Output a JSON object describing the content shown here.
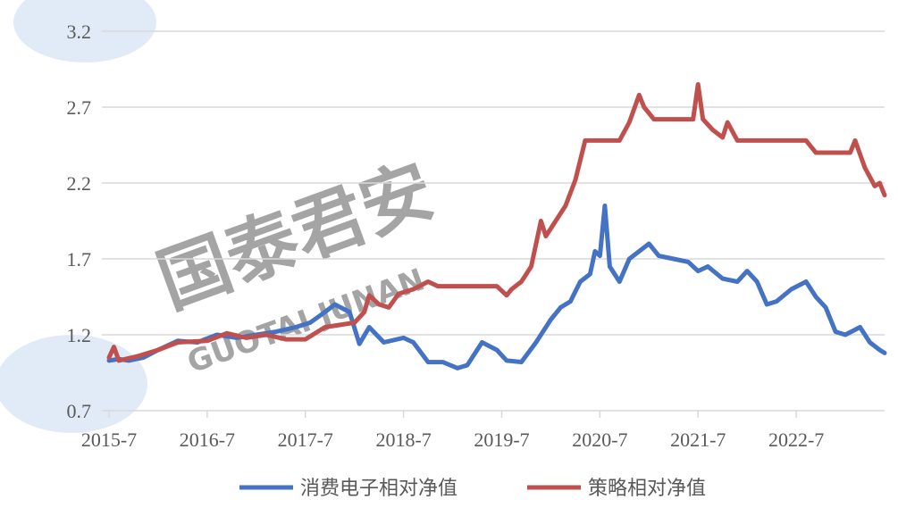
{
  "watermark": {
    "name": "国泰君安",
    "latin": "GUOTAI JUNAN"
  },
  "chart_data": {
    "type": "line",
    "title": "",
    "xlabel": "",
    "ylabel": "",
    "x_ticks": [
      "2015-7",
      "2016-7",
      "2017-7",
      "2018-7",
      "2019-7",
      "2020-7",
      "2021-7",
      "2022-7"
    ],
    "y_ticks": [
      "0.7",
      "1.2",
      "1.7",
      "2.2",
      "2.7",
      "3.2"
    ],
    "xlim": [
      2015.5,
      2023.4
    ],
    "ylim": [
      0.7,
      3.2
    ],
    "grid": true,
    "legend_position": "bottom",
    "series": [
      {
        "name": "消费电子相对净值",
        "color": "#4472c4",
        "points": [
          [
            2015.5,
            1.03
          ],
          [
            2015.6,
            1.04
          ],
          [
            2015.7,
            1.03
          ],
          [
            2015.85,
            1.05
          ],
          [
            2016.0,
            1.1
          ],
          [
            2016.2,
            1.16
          ],
          [
            2016.4,
            1.15
          ],
          [
            2016.6,
            1.2
          ],
          [
            2016.8,
            1.18
          ],
          [
            2017.0,
            1.2
          ],
          [
            2017.2,
            1.22
          ],
          [
            2017.4,
            1.25
          ],
          [
            2017.55,
            1.28
          ],
          [
            2017.7,
            1.35
          ],
          [
            2017.8,
            1.4
          ],
          [
            2017.95,
            1.35
          ],
          [
            2018.05,
            1.14
          ],
          [
            2018.15,
            1.25
          ],
          [
            2018.3,
            1.15
          ],
          [
            2018.5,
            1.18
          ],
          [
            2018.6,
            1.15
          ],
          [
            2018.75,
            1.02
          ],
          [
            2018.9,
            1.02
          ],
          [
            2019.05,
            0.98
          ],
          [
            2019.15,
            1.0
          ],
          [
            2019.3,
            1.15
          ],
          [
            2019.45,
            1.1
          ],
          [
            2019.55,
            1.03
          ],
          [
            2019.7,
            1.02
          ],
          [
            2019.85,
            1.15
          ],
          [
            2020.0,
            1.3
          ],
          [
            2020.1,
            1.38
          ],
          [
            2020.2,
            1.42
          ],
          [
            2020.3,
            1.55
          ],
          [
            2020.4,
            1.6
          ],
          [
            2020.45,
            1.75
          ],
          [
            2020.5,
            1.72
          ],
          [
            2020.55,
            2.05
          ],
          [
            2020.6,
            1.65
          ],
          [
            2020.7,
            1.55
          ],
          [
            2020.8,
            1.7
          ],
          [
            2020.9,
            1.75
          ],
          [
            2021.0,
            1.8
          ],
          [
            2021.1,
            1.72
          ],
          [
            2021.25,
            1.7
          ],
          [
            2021.4,
            1.68
          ],
          [
            2021.5,
            1.62
          ],
          [
            2021.6,
            1.65
          ],
          [
            2021.75,
            1.57
          ],
          [
            2021.9,
            1.55
          ],
          [
            2022.0,
            1.62
          ],
          [
            2022.1,
            1.55
          ],
          [
            2022.2,
            1.4
          ],
          [
            2022.3,
            1.42
          ],
          [
            2022.45,
            1.5
          ],
          [
            2022.6,
            1.55
          ],
          [
            2022.7,
            1.45
          ],
          [
            2022.8,
            1.38
          ],
          [
            2022.9,
            1.22
          ],
          [
            2023.0,
            1.2
          ],
          [
            2023.15,
            1.25
          ],
          [
            2023.25,
            1.15
          ],
          [
            2023.35,
            1.1
          ],
          [
            2023.4,
            1.08
          ]
        ]
      },
      {
        "name": "策略相对净值",
        "color": "#c0504d",
        "points": [
          [
            2015.5,
            1.05
          ],
          [
            2015.55,
            1.12
          ],
          [
            2015.6,
            1.03
          ],
          [
            2015.8,
            1.06
          ],
          [
            2016.0,
            1.1
          ],
          [
            2016.2,
            1.15
          ],
          [
            2016.5,
            1.16
          ],
          [
            2016.7,
            1.21
          ],
          [
            2016.9,
            1.18
          ],
          [
            2017.1,
            1.2
          ],
          [
            2017.3,
            1.17
          ],
          [
            2017.5,
            1.17
          ],
          [
            2017.7,
            1.25
          ],
          [
            2017.9,
            1.27
          ],
          [
            2018.0,
            1.28
          ],
          [
            2018.1,
            1.35
          ],
          [
            2018.15,
            1.46
          ],
          [
            2018.25,
            1.4
          ],
          [
            2018.35,
            1.38
          ],
          [
            2018.45,
            1.47
          ],
          [
            2018.6,
            1.5
          ],
          [
            2018.75,
            1.55
          ],
          [
            2018.85,
            1.52
          ],
          [
            2019.2,
            1.52
          ],
          [
            2019.45,
            1.52
          ],
          [
            2019.55,
            1.46
          ],
          [
            2019.6,
            1.5
          ],
          [
            2019.7,
            1.55
          ],
          [
            2019.8,
            1.65
          ],
          [
            2019.9,
            1.95
          ],
          [
            2019.95,
            1.85
          ],
          [
            2020.05,
            1.95
          ],
          [
            2020.15,
            2.05
          ],
          [
            2020.25,
            2.22
          ],
          [
            2020.35,
            2.48
          ],
          [
            2020.45,
            2.48
          ],
          [
            2020.7,
            2.48
          ],
          [
            2020.8,
            2.6
          ],
          [
            2020.9,
            2.78
          ],
          [
            2020.95,
            2.7
          ],
          [
            2021.05,
            2.62
          ],
          [
            2021.2,
            2.62
          ],
          [
            2021.45,
            2.62
          ],
          [
            2021.5,
            2.85
          ],
          [
            2021.55,
            2.62
          ],
          [
            2021.65,
            2.55
          ],
          [
            2021.75,
            2.5
          ],
          [
            2021.8,
            2.6
          ],
          [
            2021.9,
            2.48
          ],
          [
            2022.0,
            2.48
          ],
          [
            2022.3,
            2.48
          ],
          [
            2022.6,
            2.48
          ],
          [
            2022.7,
            2.4
          ],
          [
            2022.9,
            2.4
          ],
          [
            2023.05,
            2.4
          ],
          [
            2023.1,
            2.48
          ],
          [
            2023.2,
            2.3
          ],
          [
            2023.3,
            2.18
          ],
          [
            2023.35,
            2.2
          ],
          [
            2023.4,
            2.12
          ]
        ]
      }
    ]
  }
}
